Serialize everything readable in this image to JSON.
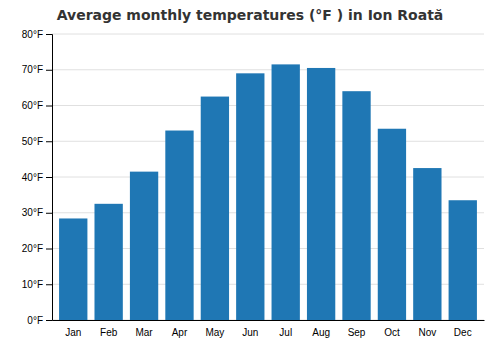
{
  "chart_data": {
    "type": "bar",
    "title": "Average monthly temperatures (°F ) in Ion Roată",
    "categories": [
      "Jan",
      "Feb",
      "Mar",
      "Apr",
      "May",
      "Jun",
      "Jul",
      "Aug",
      "Sep",
      "Oct",
      "Nov",
      "Dec"
    ],
    "values": [
      28.4,
      32.5,
      41.5,
      53.0,
      62.5,
      69.0,
      71.5,
      70.5,
      64.0,
      53.5,
      42.5,
      33.5
    ],
    "ylim": [
      0,
      80
    ],
    "yticks": [
      {
        "value": 0,
        "label": "0°F"
      },
      {
        "value": 10,
        "label": "10°F"
      },
      {
        "value": 20,
        "label": "20°F"
      },
      {
        "value": 30,
        "label": "30°F"
      },
      {
        "value": 40,
        "label": "40°F"
      },
      {
        "value": 50,
        "label": "50°F"
      },
      {
        "value": 60,
        "label": "60°F"
      },
      {
        "value": 70,
        "label": "70°F"
      },
      {
        "value": 80,
        "label": "80°F"
      }
    ],
    "grid": true
  }
}
